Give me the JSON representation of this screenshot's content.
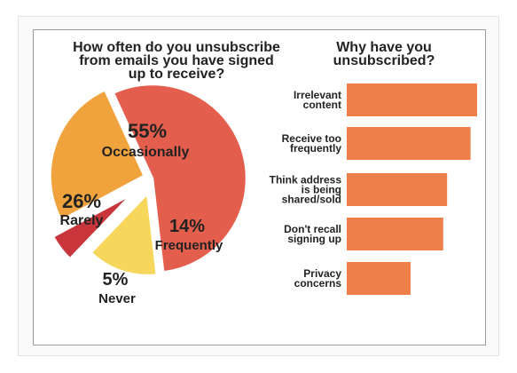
{
  "chart_data": [
    {
      "type": "pie",
      "title": "How often do you unsubscribe\nfrom emails you have signed\nup to receive?",
      "slices": [
        {
          "label": "Occasionally",
          "pct_label": "55%",
          "value": 55,
          "color": "#e35e4c"
        },
        {
          "label": "Frequently",
          "pct_label": "14%",
          "value": 14,
          "color": "#f6d65b"
        },
        {
          "label": "Never",
          "pct_label": "5%",
          "value": 5,
          "color": "#c8353a"
        },
        {
          "label": "Rarely",
          "pct_label": "26%",
          "value": 26,
          "color": "#f0a33c"
        }
      ]
    },
    {
      "type": "bar",
      "orientation": "horizontal",
      "title": "Why have you\nunsubscribed?",
      "categories": [
        "Irrelevant\ncontent",
        "Receive too\nfrequently",
        "Think address\nis being\nshared/sold",
        "Don't recall\nsigning up",
        "Privacy\nconcerns"
      ],
      "values": [
        100,
        95,
        77,
        74,
        49
      ],
      "color": "#ef7f49",
      "axis_labels": false
    }
  ]
}
